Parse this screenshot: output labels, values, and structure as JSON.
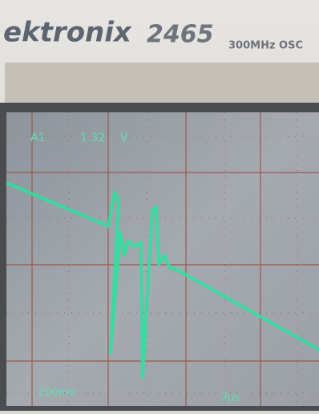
{
  "panel": {
    "brand": "ektronix",
    "model": "2465",
    "spec": "300MHz OSC"
  },
  "readout": {
    "channel": "A1",
    "level": "1.32",
    "unit": "V",
    "volts_per_div": "200mV",
    "time_per_div": "2μs"
  }
}
